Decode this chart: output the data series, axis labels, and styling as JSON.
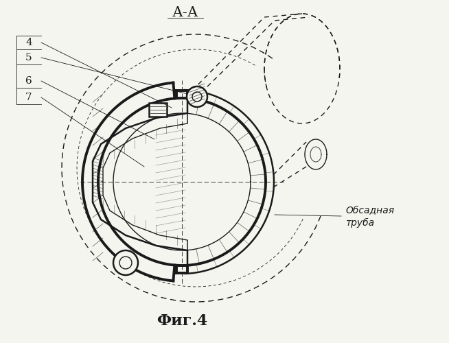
{
  "title": "А-А",
  "fig_label": "Фиг.4",
  "annotation_line1": "Обсадная",
  "annotation_line2": "труба",
  "part_labels": [
    "4",
    "5",
    "6",
    "7"
  ],
  "bg_color": "#f5f5f0",
  "line_color": "#1a1a1a"
}
